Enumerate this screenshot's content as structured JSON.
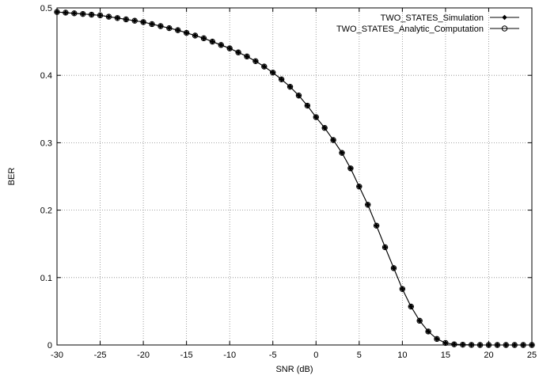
{
  "chart_data": {
    "type": "line",
    "title": "",
    "xlabel": "SNR (dB)",
    "ylabel": "BER",
    "xlim": [
      -30,
      25
    ],
    "ylim": [
      0,
      0.5
    ],
    "xticks": [
      "-30",
      "-25",
      "-20",
      "-15",
      "-10",
      "-5",
      "0",
      "5",
      "10",
      "15",
      "20",
      "25"
    ],
    "yticks": [
      "0",
      "0.1",
      "0.2",
      "0.3",
      "0.4",
      "0.5"
    ],
    "grid": true,
    "legend_position": "top-right",
    "x": [
      -30,
      -29,
      -28,
      -27,
      -26,
      -25,
      -24,
      -23,
      -22,
      -21,
      -20,
      -19,
      -18,
      -17,
      -16,
      -15,
      -14,
      -13,
      -12,
      -11,
      -10,
      -9,
      -8,
      -7,
      -6,
      -5,
      -4,
      -3,
      -2,
      -1,
      0,
      1,
      2,
      3,
      4,
      5,
      6,
      7,
      8,
      9,
      10,
      11,
      12,
      13,
      14,
      15,
      16,
      17,
      18,
      19,
      20,
      21,
      22,
      23,
      24,
      25
    ],
    "series": [
      {
        "name": "TWO_STATES_Simulation",
        "marker": "filled-diamond",
        "color": "#000000",
        "values": [
          0.494,
          0.493,
          0.492,
          0.491,
          0.49,
          0.489,
          0.487,
          0.485,
          0.483,
          0.481,
          0.479,
          0.476,
          0.473,
          0.47,
          0.467,
          0.463,
          0.459,
          0.455,
          0.45,
          0.445,
          0.44,
          0.434,
          0.428,
          0.421,
          0.413,
          0.404,
          0.394,
          0.383,
          0.37,
          0.355,
          0.338,
          0.322,
          0.304,
          0.285,
          0.262,
          0.235,
          0.208,
          0.177,
          0.145,
          0.114,
          0.083,
          0.057,
          0.036,
          0.02,
          0.009,
          0.003,
          0.001,
          0.0004,
          0.0001,
          0,
          0,
          0,
          0,
          0,
          0,
          0
        ]
      },
      {
        "name": "TWO_STATES_Analytic_Computation",
        "marker": "open-circle",
        "color": "#000000",
        "values": [
          0.494,
          0.493,
          0.492,
          0.491,
          0.49,
          0.489,
          0.487,
          0.485,
          0.483,
          0.481,
          0.479,
          0.476,
          0.473,
          0.47,
          0.467,
          0.463,
          0.459,
          0.455,
          0.45,
          0.445,
          0.44,
          0.434,
          0.428,
          0.421,
          0.413,
          0.404,
          0.394,
          0.383,
          0.37,
          0.355,
          0.338,
          0.322,
          0.304,
          0.285,
          0.262,
          0.235,
          0.208,
          0.177,
          0.145,
          0.114,
          0.083,
          0.057,
          0.036,
          0.02,
          0.009,
          0.003,
          0.001,
          0.0004,
          0.0001,
          0,
          0,
          0,
          0,
          0,
          0,
          0
        ]
      }
    ]
  }
}
